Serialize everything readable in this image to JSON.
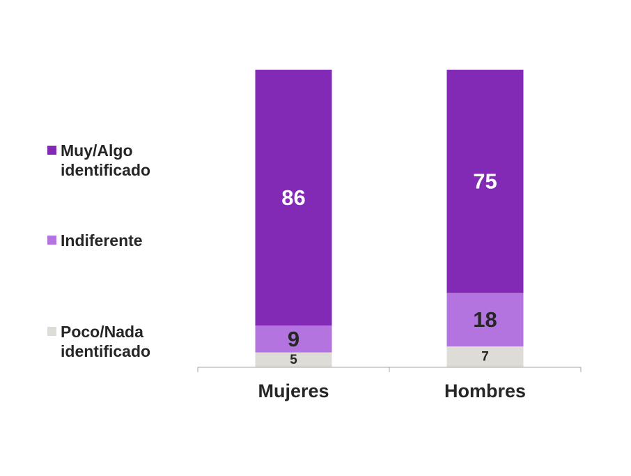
{
  "chart_data": {
    "type": "bar",
    "stacked": true,
    "categories": [
      "Mujeres",
      "Hombres"
    ],
    "series": [
      {
        "name": "Poco/Nada identificado",
        "values": [
          5,
          7
        ],
        "color": "#dedcd7",
        "label_color": "#262626"
      },
      {
        "name": "Indiferente",
        "values": [
          9,
          18
        ],
        "color": "#b374e0",
        "label_color": "#262626"
      },
      {
        "name": "Muy/Algo identificado",
        "values": [
          86,
          75
        ],
        "color": "#8229b5",
        "label_color": "#ffffff"
      }
    ],
    "ylim": [
      0,
      100
    ],
    "legend_position": "left",
    "grid": false,
    "title": "",
    "xlabel": "",
    "ylabel": ""
  },
  "legend": {
    "items": [
      {
        "label": "Muy/Algo identificado",
        "color": "#8229b5"
      },
      {
        "label": "Indiferente",
        "color": "#b374e0"
      },
      {
        "label": "Poco/Nada identificado",
        "color": "#dedcd7"
      }
    ]
  }
}
